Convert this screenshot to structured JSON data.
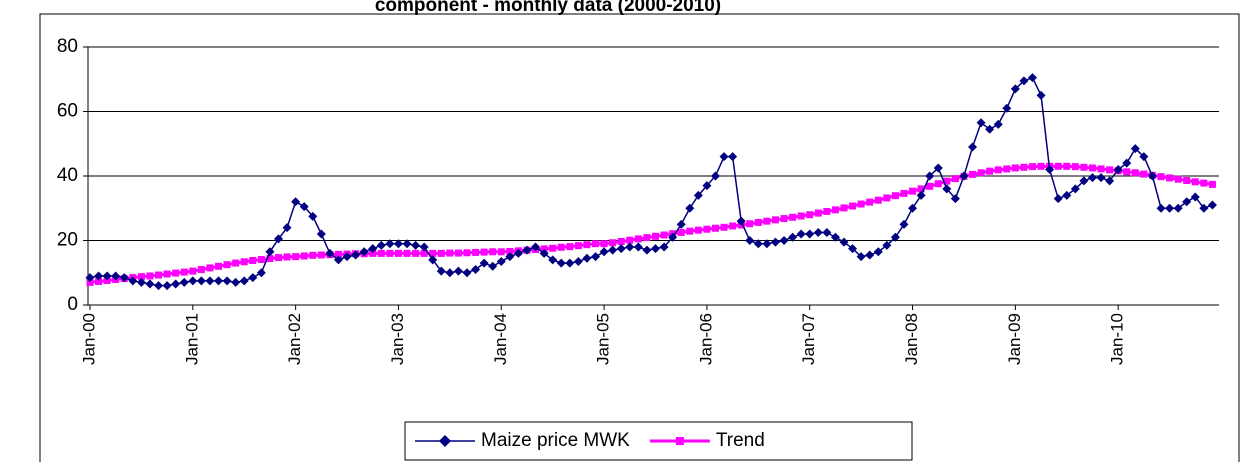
{
  "chart_data": {
    "type": "line",
    "title": "component - monthly data (2000-2010)",
    "categories": [
      "Jan-00",
      null,
      null,
      null,
      null,
      null,
      null,
      null,
      null,
      null,
      null,
      null,
      "Jan-01",
      null,
      null,
      null,
      null,
      null,
      null,
      null,
      null,
      null,
      null,
      null,
      "Jan-02",
      null,
      null,
      null,
      null,
      null,
      null,
      null,
      null,
      null,
      null,
      null,
      "Jan-03",
      null,
      null,
      null,
      null,
      null,
      null,
      null,
      null,
      null,
      null,
      null,
      "Jan-04",
      null,
      null,
      null,
      null,
      null,
      null,
      null,
      null,
      null,
      null,
      null,
      "Jan-05",
      null,
      null,
      null,
      null,
      null,
      null,
      null,
      null,
      null,
      null,
      null,
      "Jan-06",
      null,
      null,
      null,
      null,
      null,
      null,
      null,
      null,
      null,
      null,
      null,
      "Jan-07",
      null,
      null,
      null,
      null,
      null,
      null,
      null,
      null,
      null,
      null,
      null,
      "Jan-08",
      null,
      null,
      null,
      null,
      null,
      null,
      null,
      null,
      null,
      null,
      null,
      "Jan-09",
      null,
      null,
      null,
      null,
      null,
      null,
      null,
      null,
      null,
      null,
      null,
      "Jan-10",
      null,
      null,
      null,
      null,
      null,
      null,
      null,
      null,
      null,
      null,
      null
    ],
    "series": [
      {
        "name": "Maize price MWK",
        "color": "#000080",
        "marker": "diamond",
        "values": [
          8.5,
          9,
          9,
          9,
          8.5,
          7.5,
          7,
          6.5,
          6,
          6,
          6.5,
          7,
          7.5,
          7.5,
          7.5,
          7.5,
          7.5,
          7,
          7.5,
          8.5,
          10,
          16.5,
          20.5,
          24,
          32,
          30.5,
          27.5,
          22,
          16,
          14,
          15,
          15.5,
          16.5,
          17.5,
          18.5,
          19,
          19,
          19,
          18.5,
          18,
          14,
          10.5,
          10,
          10.5,
          10,
          11,
          13,
          12,
          13.5,
          15,
          16,
          17,
          18,
          16,
          14,
          13,
          13,
          13.5,
          14.5,
          15,
          16.5,
          17,
          17.5,
          18,
          18,
          17,
          17.5,
          18,
          21,
          25,
          30,
          34,
          37,
          40,
          46,
          46,
          26,
          20,
          19,
          19,
          19.5,
          20,
          21,
          22,
          22,
          22.5,
          22.5,
          21,
          19.5,
          17.5,
          15,
          15.5,
          16.5,
          18.5,
          21,
          25,
          30,
          34,
          40,
          42.5,
          36,
          33,
          40,
          49,
          56.5,
          54.5,
          56,
          61,
          67,
          69.5,
          70.5,
          65,
          42,
          33,
          34,
          36,
          38.5,
          39.5,
          39.5,
          38.5,
          42,
          44,
          48.5,
          46,
          40,
          30,
          30,
          30,
          32,
          33.5,
          30,
          31
        ]
      },
      {
        "name": "Trend",
        "color": "#ff00ff",
        "marker": "square",
        "values": [
          7,
          7.3,
          7.6,
          7.9,
          8.2,
          8.5,
          8.8,
          9.0,
          9.3,
          9.6,
          9.9,
          10.2,
          10.5,
          11,
          11.5,
          12,
          12.5,
          13,
          13.4,
          13.8,
          14.1,
          14.4,
          14.7,
          14.9,
          15,
          15.2,
          15.4,
          15.5,
          15.6,
          15.7,
          15.8,
          15.9,
          15.9,
          16,
          16,
          16,
          16,
          16,
          16,
          16,
          16,
          16,
          16.1,
          16.1,
          16.2,
          16.3,
          16.4,
          16.5,
          16.5,
          16.6,
          16.8,
          17,
          17.2,
          17.4,
          17.6,
          17.9,
          18.1,
          18.4,
          18.7,
          19,
          19,
          19.3,
          19.7,
          20.1,
          20.5,
          20.9,
          21.3,
          21.7,
          22.1,
          22.5,
          22.9,
          23.2,
          23.5,
          23.8,
          24.1,
          24.5,
          24.8,
          25.2,
          25.6,
          26,
          26.4,
          26.8,
          27.2,
          27.6,
          28,
          28.5,
          29,
          29.5,
          30.1,
          30.7,
          31.3,
          31.9,
          32.5,
          33.2,
          33.9,
          34.6,
          35.3,
          36,
          36.8,
          37.6,
          38.4,
          39.2,
          39.9,
          40.5,
          41,
          41.5,
          41.9,
          42.2,
          42.5,
          42.7,
          42.9,
          43,
          43,
          43,
          43,
          42.9,
          42.7,
          42.5,
          42.2,
          41.9,
          41.6,
          41.3,
          41,
          40.6,
          40.2,
          39.8,
          39.4,
          39,
          38.6,
          38.2,
          37.8,
          37.4
        ]
      }
    ],
    "ylim": [
      0,
      80
    ],
    "yticks": [
      0,
      20,
      40,
      60,
      80
    ],
    "grid": true,
    "legend": "bottom"
  }
}
